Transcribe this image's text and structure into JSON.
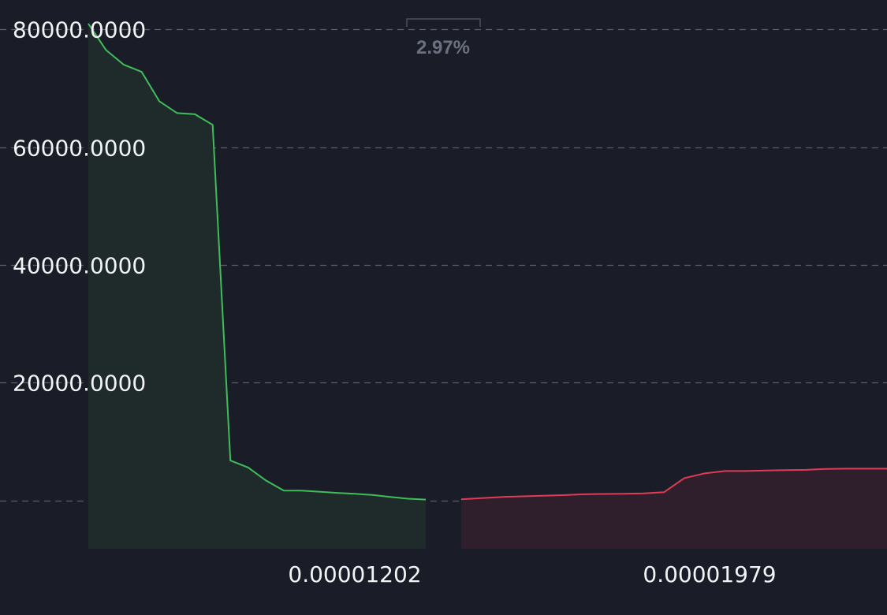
{
  "chart_data": {
    "type": "area",
    "y_axis": {
      "ylim": [
        -8200,
        85000
      ],
      "ticks": [
        0,
        20000,
        40000,
        60000,
        80000
      ],
      "tick_labels": [
        "",
        "20000.0000",
        "40000.0000",
        "60000.0000",
        "80000.0000"
      ],
      "grid": true
    },
    "x_axis": {
      "tick_labels": [
        "0.00001202",
        "0.00001979"
      ]
    },
    "spread": {
      "label": "2.97%"
    },
    "series": [
      {
        "side": "bids",
        "color": "#3fbd5a",
        "fill": "#1f2b2b",
        "y": [
          81000,
          76500,
          74000,
          72800,
          67800,
          65800,
          65600,
          63800,
          6800,
          5600,
          3400,
          1700,
          1680,
          1500,
          1300,
          1150,
          950,
          600,
          300,
          150
        ]
      },
      {
        "side": "asks",
        "color": "#e03c55",
        "fill": "#2f1f2c",
        "y": [
          200,
          400,
          600,
          700,
          800,
          900,
          1050,
          1100,
          1150,
          1200,
          1400,
          3800,
          4600,
          5000,
          5000,
          5100,
          5150,
          5200,
          5350,
          5400,
          5400,
          5400
        ]
      }
    ]
  }
}
